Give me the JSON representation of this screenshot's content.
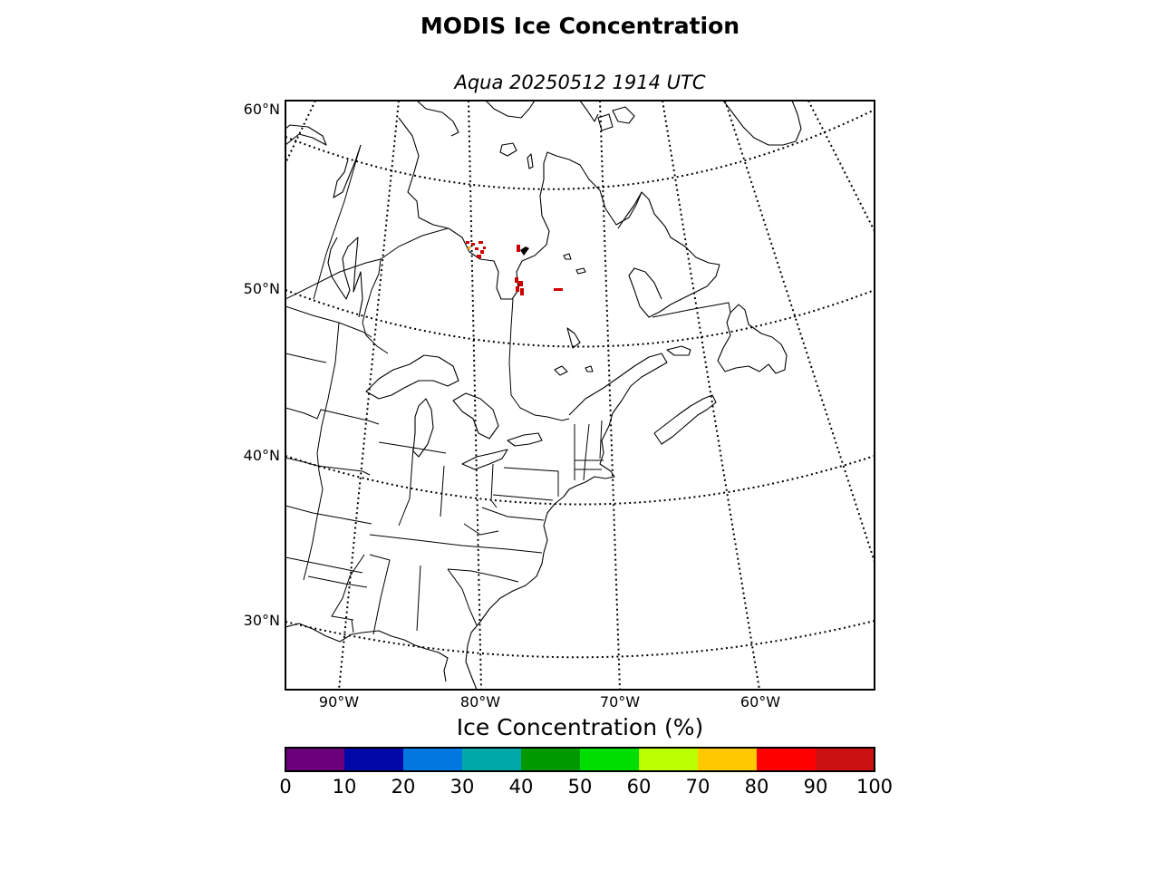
{
  "title": "MODIS Ice Concentration",
  "subtitle": "Aqua 20250512 1914 UTC",
  "map": {
    "projection": "conic",
    "region": "Northeastern North America",
    "lat_labels": [
      {
        "lat": 60,
        "text": "60°N"
      },
      {
        "lat": 50,
        "text": "50°N"
      },
      {
        "lat": 40,
        "text": "40°N"
      },
      {
        "lat": 30,
        "text": "30°N"
      }
    ],
    "lon_labels": [
      {
        "lon": -90,
        "text": "90°W"
      },
      {
        "lon": -80,
        "text": "80°W"
      },
      {
        "lon": -70,
        "text": "70°W"
      },
      {
        "lon": -60,
        "text": "60°W"
      }
    ],
    "graticule_style": "dotted",
    "ice_color": "#cc0000",
    "ice_regions": [
      "western James Bay coast",
      "eastern James Bay coast",
      "small interior lake in Quebec"
    ]
  },
  "colorbar": {
    "label": "Ice Concentration (%)",
    "ticks": [
      "0",
      "10",
      "20",
      "30",
      "40",
      "50",
      "60",
      "70",
      "80",
      "90",
      "100"
    ],
    "colors": [
      "#6a007a",
      "#0008a8",
      "#0078e0",
      "#00a8a8",
      "#009a00",
      "#00dd00",
      "#bbff00",
      "#ffc800",
      "#ff0000",
      "#cc1111"
    ]
  }
}
